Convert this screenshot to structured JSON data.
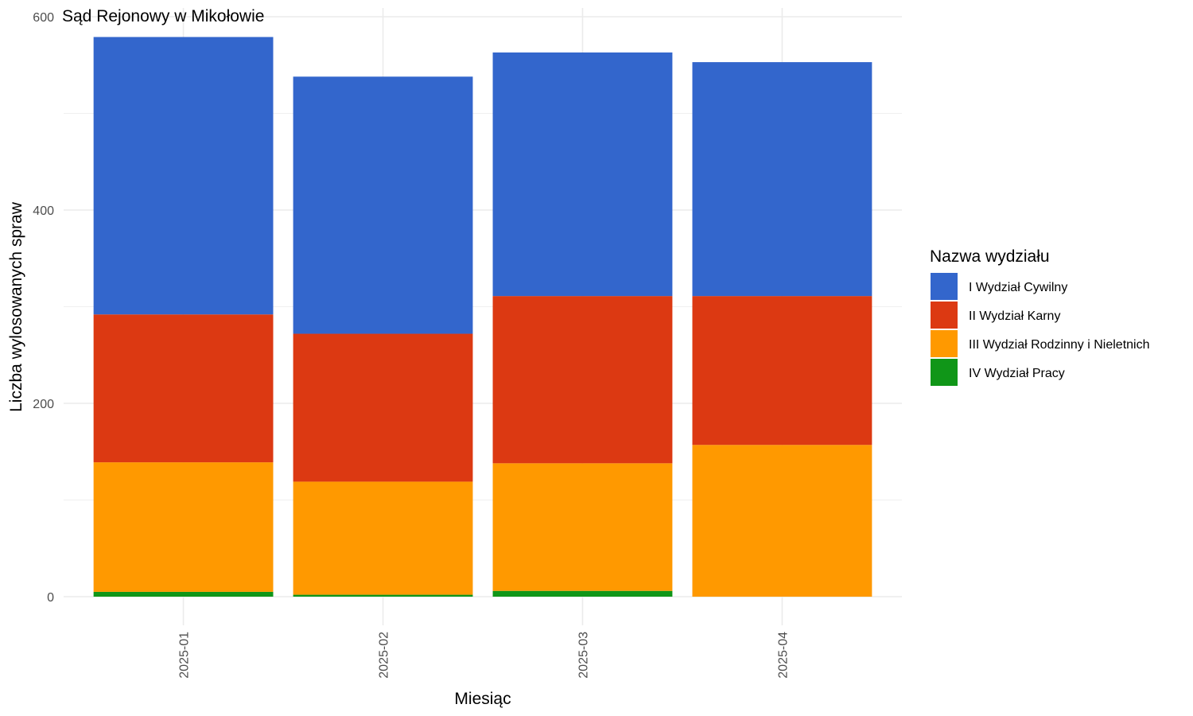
{
  "chart_data": {
    "type": "bar",
    "stacked": true,
    "title": "Sąd Rejonowy w Mikołowie",
    "xlabel": "Miesiąc",
    "ylabel": "Liczba wylosowanych spraw",
    "categories": [
      "2025-01",
      "2025-02",
      "2025-03",
      "2025-04"
    ],
    "ylim": [
      0,
      600
    ],
    "yticks": [
      0,
      200,
      400,
      600
    ],
    "grid": true,
    "legend_title": "Nazwa wydziału",
    "legend_position": "right",
    "series": [
      {
        "name": "I Wydział Cywilny",
        "color": "#3366CC",
        "values": [
          287,
          266,
          252,
          242
        ]
      },
      {
        "name": "II Wydział Karny",
        "color": "#DC3912",
        "values": [
          153,
          153,
          173,
          154
        ]
      },
      {
        "name": "III Wydział Rodzinny i Nieletnich",
        "color": "#FF9900",
        "values": [
          134,
          117,
          132,
          157
        ]
      },
      {
        "name": "IV Wydział Pracy",
        "color": "#109618",
        "values": [
          5,
          2,
          6,
          0
        ]
      }
    ]
  }
}
